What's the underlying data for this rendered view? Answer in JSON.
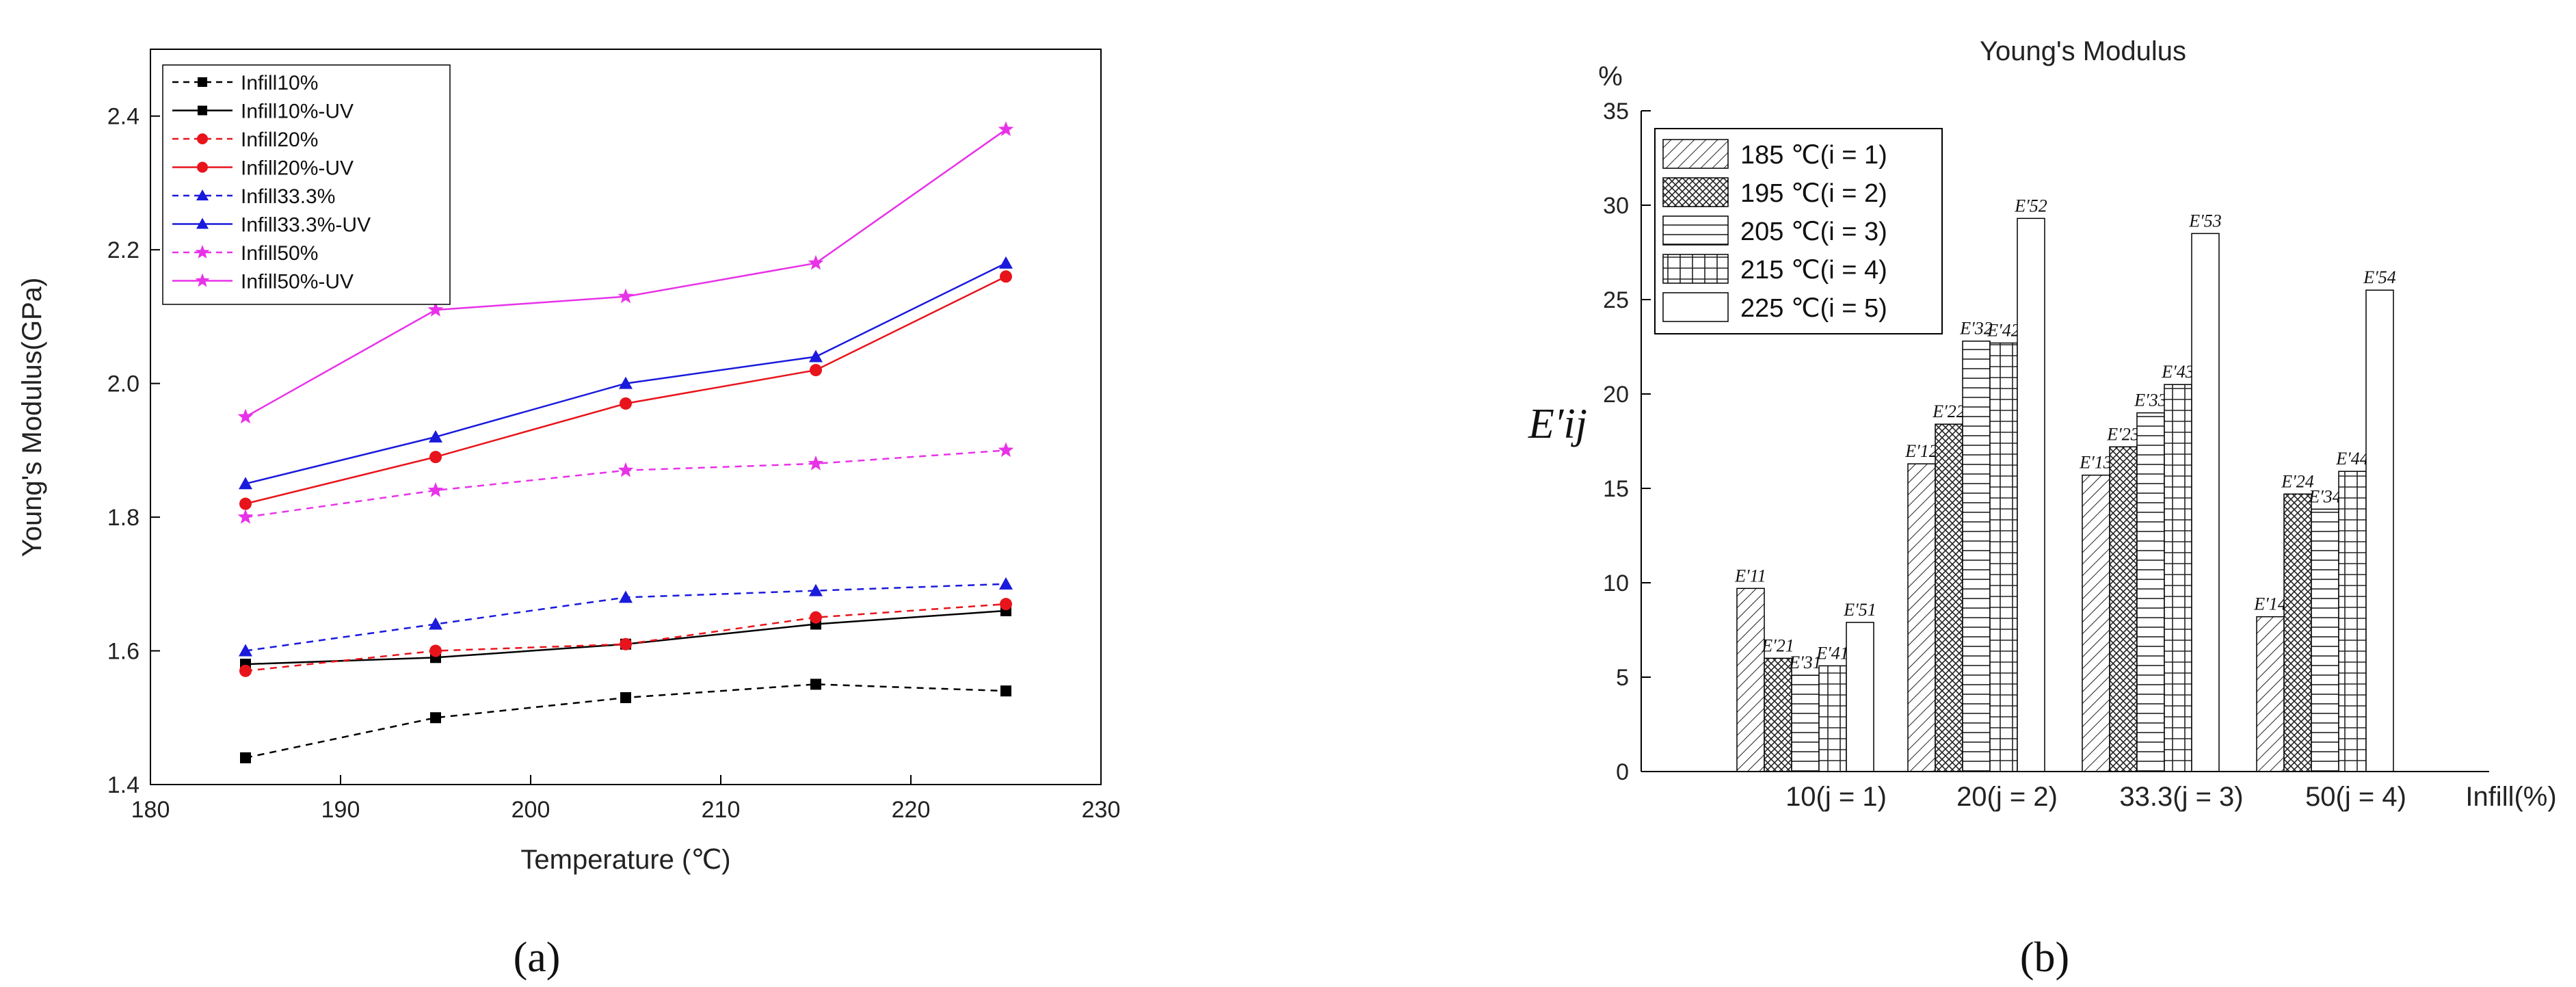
{
  "chart_data": [
    {
      "id": "a",
      "type": "line",
      "caption": "(a)",
      "title": "",
      "xlabel": "Temperature (℃)",
      "ylabel": "Young's Modulus(GPa)",
      "xlim": [
        180,
        230
      ],
      "ylim": [
        1.4,
        2.5
      ],
      "xticks": [
        "180",
        "190",
        "200",
        "210",
        "220",
        "230"
      ],
      "yticks": [
        "1.4",
        "1.6",
        "1.8",
        "2.0",
        "2.2",
        "2.4"
      ],
      "legend_position": "top-left",
      "x": [
        185,
        195,
        205,
        215,
        225
      ],
      "series": [
        {
          "name": "Infill10%",
          "values": [
            1.44,
            1.5,
            1.53,
            1.55,
            1.54
          ],
          "color": "#000000",
          "dashed": true,
          "marker": "square"
        },
        {
          "name": "Infill10%-UV",
          "values": [
            1.58,
            1.59,
            1.61,
            1.64,
            1.66
          ],
          "color": "#000000",
          "dashed": false,
          "marker": "square"
        },
        {
          "name": "Infill20%",
          "values": [
            1.57,
            1.6,
            1.61,
            1.65,
            1.67
          ],
          "color": "#e8141b",
          "dashed": true,
          "marker": "circle"
        },
        {
          "name": "Infill20%-UV",
          "values": [
            1.82,
            1.89,
            1.97,
            2.02,
            2.16
          ],
          "color": "#e8141b",
          "dashed": false,
          "marker": "circle"
        },
        {
          "name": "Infill33.3%",
          "values": [
            1.6,
            1.64,
            1.68,
            1.69,
            1.7
          ],
          "color": "#1a1adc",
          "dashed": true,
          "marker": "triangle"
        },
        {
          "name": "Infill33.3%-UV",
          "values": [
            1.85,
            1.92,
            2.0,
            2.04,
            2.18
          ],
          "color": "#1a1adc",
          "dashed": false,
          "marker": "triangle"
        },
        {
          "name": "Infill50%",
          "values": [
            1.8,
            1.84,
            1.87,
            1.88,
            1.9
          ],
          "color": "#e832e8",
          "dashed": true,
          "marker": "star"
        },
        {
          "name": "Infill50%-UV",
          "values": [
            1.95,
            2.11,
            2.13,
            2.18,
            2.38
          ],
          "color": "#e832e8",
          "dashed": false,
          "marker": "star"
        }
      ]
    },
    {
      "id": "b",
      "type": "bar",
      "caption": "(b)",
      "title": "Young's Modulus",
      "ylabel_unit": "%",
      "ylabel": "E′ij",
      "xlabel": "Infill(%)",
      "ylim": [
        0,
        35
      ],
      "yticks": [
        "0",
        "5",
        "10",
        "15",
        "20",
        "25",
        "30",
        "35"
      ],
      "legend_position": "top-left",
      "categories": [
        "10(j = 1)",
        "20(j = 2)",
        "33.3(j = 3)",
        "50(j = 4)"
      ],
      "series": [
        {
          "name": "185 ℃(i = 1)",
          "pattern": "diag",
          "values": [
            9.7,
            16.3,
            15.7,
            8.2
          ],
          "labels": [
            "E′11",
            "E′12",
            "E′13",
            "E′14"
          ]
        },
        {
          "name": "195 ℃(i = 2)",
          "pattern": "cross",
          "values": [
            6.0,
            18.4,
            17.2,
            14.7
          ],
          "labels": [
            "E′21",
            "E′22",
            "E′23",
            "E′24"
          ]
        },
        {
          "name": "205 ℃(i = 3)",
          "pattern": "horiz",
          "values": [
            5.1,
            22.8,
            19.0,
            13.9
          ],
          "labels": [
            "E′31",
            "E′32",
            "E′33",
            "E′34"
          ]
        },
        {
          "name": "215 ℃(i = 4)",
          "pattern": "grid",
          "values": [
            5.6,
            22.7,
            20.5,
            15.9
          ],
          "labels": [
            "E′41",
            "E′42",
            "E′43",
            "E′44"
          ]
        },
        {
          "name": "225 ℃(i = 5)",
          "pattern": "none",
          "values": [
            7.9,
            29.3,
            28.5,
            25.5
          ],
          "labels": [
            "E′51",
            "E′52",
            "E′53",
            "E′54"
          ]
        }
      ]
    }
  ]
}
